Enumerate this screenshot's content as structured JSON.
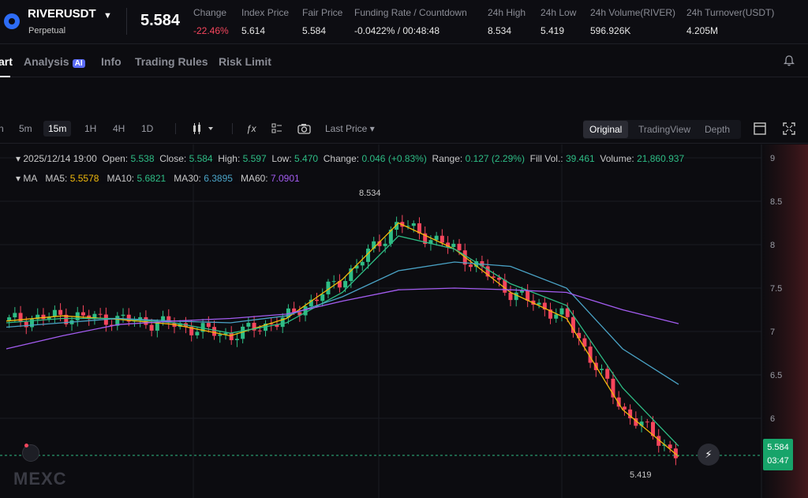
{
  "ticker": {
    "symbol": "RIVERUSDT",
    "contract_type": "Perpetual",
    "last_price": "5.584",
    "stats": [
      {
        "label": "Change",
        "value": "-22.46%",
        "tone": "down"
      },
      {
        "label": "Index Price",
        "value": "5.614",
        "tone": "neutral"
      },
      {
        "label": "Fair Price",
        "value": "5.584",
        "tone": "neutral"
      },
      {
        "label": "Funding Rate / Countdown",
        "value": "-0.0422% / 00:48:48",
        "tone": "neutral"
      },
      {
        "label": "24h High",
        "value": "8.534",
        "tone": "neutral"
      },
      {
        "label": "24h Low",
        "value": "5.419",
        "tone": "neutral"
      },
      {
        "label": "24h Volume(RIVER)",
        "value": "596.926K",
        "tone": "neutral"
      },
      {
        "label": "24h Turnover(USDT)",
        "value": "4.205M",
        "tone": "neutral"
      }
    ]
  },
  "tabs": [
    {
      "label": "art",
      "active": true
    },
    {
      "label": "Analysis",
      "badge": "AI",
      "active": false
    },
    {
      "label": "Info",
      "active": false
    },
    {
      "label": "Trading Rules",
      "active": false
    },
    {
      "label": "Risk Limit",
      "active": false
    }
  ],
  "toolbar": {
    "intervals": [
      "5m",
      "15m",
      "1H",
      "4H",
      "1D"
    ],
    "active_interval": "15m",
    "price_type": "Last Price",
    "views": [
      "Original",
      "TradingView",
      "Depth"
    ],
    "active_view": "Original",
    "icons": [
      "candle-type-icon",
      "indicator-icon",
      "layout-icon",
      "camera-icon",
      "settings-icon",
      "fullscreen-icon"
    ]
  },
  "info": {
    "time": "2025/12/14 19:00",
    "open_label": "Open:",
    "open": "5.538",
    "close_label": "Close:",
    "close": "5.584",
    "high_label": "High:",
    "high": "5.597",
    "low_label": "Low:",
    "low": "5.470",
    "change_label": "Change:",
    "change": "0.046 (+0.83%)",
    "range_label": "Range:",
    "range": "0.127 (2.29%)",
    "fillvol_label": "Fill Vol.:",
    "fillvol": "39.461",
    "volume_label": "Volume:",
    "volume": "21,860.937",
    "ma_label": "MA",
    "ma5_label": "MA5:",
    "ma5": "5.5578",
    "ma10_label": "MA10:",
    "ma10": "5.6821",
    "ma30_label": "MA30:",
    "ma30": "6.3895",
    "ma60_label": "MA60:",
    "ma60": "7.0901"
  },
  "current": {
    "price": "5.584",
    "countdown": "03:47"
  },
  "extremes": {
    "high_label": "8.534",
    "low_label": "5.419"
  },
  "watermark": "MEXC",
  "colors": {
    "up": "#2ebd85",
    "down": "#f6465d",
    "ma5": "#f0b90b",
    "ma10": "#2ebd85",
    "ma30": "#4aa3c6",
    "ma60": "#a35cf0"
  },
  "chart_data": {
    "type": "line",
    "title": "",
    "ylim": [
      5.0,
      9.0
    ],
    "yticks": [
      "9",
      "8.5",
      "8",
      "7.5",
      "7",
      "6.5",
      "6"
    ],
    "series": [
      {
        "name": "MA5",
        "x": [
          0,
          10,
          20,
          30,
          40,
          50,
          60,
          70,
          80,
          90,
          100,
          110,
          120
        ],
        "values": [
          7.12,
          7.18,
          7.14,
          7.08,
          6.95,
          7.15,
          7.6,
          8.25,
          7.95,
          7.45,
          7.15,
          6.1,
          5.56
        ]
      },
      {
        "name": "MA10",
        "x": [
          0,
          10,
          20,
          30,
          40,
          50,
          60,
          70,
          80,
          90,
          100,
          110,
          120
        ],
        "values": [
          7.1,
          7.15,
          7.15,
          7.1,
          6.98,
          7.1,
          7.45,
          8.1,
          7.95,
          7.55,
          7.3,
          6.35,
          5.68
        ]
      },
      {
        "name": "MA30",
        "x": [
          0,
          10,
          20,
          30,
          40,
          50,
          60,
          70,
          80,
          90,
          100,
          110,
          120
        ],
        "values": [
          7.05,
          7.1,
          7.15,
          7.12,
          7.1,
          7.18,
          7.4,
          7.7,
          7.8,
          7.75,
          7.5,
          6.8,
          6.39
        ]
      },
      {
        "name": "MA60",
        "x": [
          0,
          10,
          20,
          30,
          40,
          50,
          60,
          70,
          80,
          90,
          100,
          110,
          120
        ],
        "values": [
          6.8,
          6.95,
          7.08,
          7.12,
          7.15,
          7.2,
          7.35,
          7.48,
          7.5,
          7.48,
          7.45,
          7.25,
          7.09
        ]
      }
    ]
  }
}
